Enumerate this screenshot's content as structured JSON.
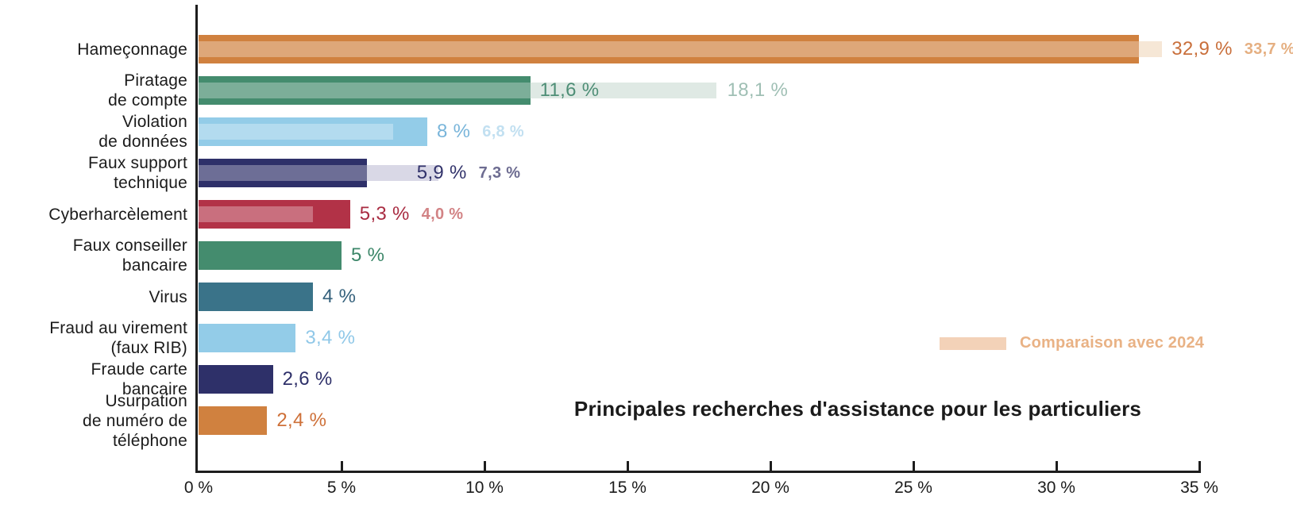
{
  "chart_data": {
    "type": "bar",
    "orientation": "horizontal",
    "title": "Principales recherches d'assistance pour les particuliers",
    "legend": {
      "label": "Comparaison avec 2024",
      "swatch_color": "#F3D2B8",
      "text_color": "#E9B285"
    },
    "x_axis": {
      "unit": "%",
      "min": 0,
      "max": 35,
      "tick_step": 5,
      "tick_labels": [
        "0 %",
        "5 %",
        "10 %",
        "15 %",
        "20 %",
        "25 %",
        "30 %",
        "35 %"
      ],
      "axis_color": "#1d1d1d"
    },
    "rows": [
      {
        "label": "Hameçonnage",
        "label_lines": [
          "Hameçonnage"
        ],
        "value": 32.9,
        "value_label": "32,9 %",
        "comp_value": 33.7,
        "comp_label": "33,7 %",
        "bar_color": "#D0813F",
        "tint_color": "#F6E7D6",
        "value_color": "#C96F3B",
        "comp_color": "#E5AF81"
      },
      {
        "label": "Piratage de compte",
        "label_lines": [
          "Piratage",
          "de compte"
        ],
        "value": 11.6,
        "value_label": "11,6 %",
        "comp_value": 18.1,
        "comp_label": "18,1 %",
        "bar_color": "#448C6E",
        "tint_color": "#DFE9E4",
        "value_color": "#4E8E76",
        "comp_color": "#9FBFB4"
      },
      {
        "label": "Violation de données",
        "label_lines": [
          "Violation",
          "de données"
        ],
        "value": 8,
        "value_label": "8 %",
        "comp_value": 6.8,
        "comp_label": "6,8 %",
        "bar_color": "#93CCE8",
        "tint_color": "#C9E6F4",
        "value_color": "#79B5DA",
        "comp_color": "#C2E0F1"
      },
      {
        "label": "Faux support technique",
        "label_lines": [
          "Faux support",
          "technique"
        ],
        "value": 5.9,
        "value_label": "5,9 %",
        "comp_value": 7.3,
        "comp_label": "7,3 %",
        "band_to": 8.4,
        "bar_color": "#2E3069",
        "tint_color": "#D9D8E6",
        "value_color": "#32336B",
        "comp_color": "#6D6C91"
      },
      {
        "label": "Cyberharcèlement",
        "label_lines": [
          "Cyberharcèlement"
        ],
        "value": 5.3,
        "value_label": "5,3 %",
        "comp_value": 4.0,
        "comp_label": "4,0 %",
        "bar_color": "#B23247",
        "tint_color": "#E9C3C8",
        "value_color": "#A92C42",
        "comp_color": "#D28385"
      },
      {
        "label": "Faux conseiller bancaire",
        "label_lines": [
          "Faux conseiller",
          "bancaire"
        ],
        "value": 5,
        "value_label": "5 %",
        "comp_value": null,
        "comp_label": null,
        "bar_color": "#448C6E",
        "tint_color": null,
        "value_color": "#3B8668",
        "comp_color": null
      },
      {
        "label": "Virus",
        "label_lines": [
          "Virus"
        ],
        "value": 4,
        "value_label": "4 %",
        "comp_value": null,
        "comp_label": null,
        "bar_color": "#3A7389",
        "tint_color": null,
        "value_color": "#35617C",
        "comp_color": null
      },
      {
        "label": "Fraud au virement (faux RIB)",
        "label_lines": [
          "Fraud au virement",
          "(faux RIB)"
        ],
        "value": 3.4,
        "value_label": "3,4 %",
        "comp_value": null,
        "comp_label": null,
        "bar_color": "#93CCE8",
        "tint_color": null,
        "value_color": "#90C8E8",
        "comp_color": null
      },
      {
        "label": "Fraude carte bancaire",
        "label_lines": [
          "Fraude carte",
          "bancaire"
        ],
        "value": 2.6,
        "value_label": "2,6 %",
        "comp_value": null,
        "comp_label": null,
        "bar_color": "#2E3069",
        "tint_color": null,
        "value_color": "#2E3069",
        "comp_color": null
      },
      {
        "label": "Usurpation de numéro de téléphone",
        "label_lines": [
          "Usurpation",
          "de numéro de",
          "téléphone"
        ],
        "value": 2.4,
        "value_label": "2,4 %",
        "comp_value": null,
        "comp_label": null,
        "bar_color": "#D0813F",
        "tint_color": null,
        "value_color": "#CE7038",
        "comp_color": null
      }
    ]
  }
}
